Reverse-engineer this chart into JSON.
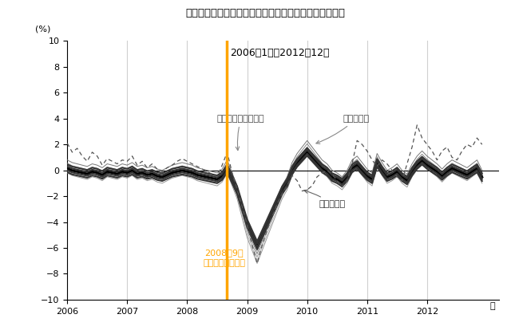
{
  "title": "《参考》現金給与総額（前年同月比）　就業形態別比較",
  "subtitle": "2006年1月～2012年12月",
  "ylabel": "(%)",
  "vline_color": "#FFA500",
  "vline_label1": "2008年9月",
  "vline_label2": "リーマンショック",
  "legend_parttime": "パートタイム労働者",
  "legend_general": "一般労働者",
  "legend_total": "就業形態計",
  "bg_color": "#ffffff",
  "plot_bg_color": "#ffffff",
  "grid_color": "#d0d0d0",
  "parttime": [
    2.1,
    1.4,
    1.7,
    1.1,
    0.7,
    1.4,
    1.1,
    0.4,
    0.9,
    0.7,
    0.5,
    0.8,
    0.7,
    1.1,
    0.4,
    0.7,
    0.2,
    0.5,
    0.1,
    -0.1,
    0.2,
    0.4,
    0.7,
    0.9,
    0.7,
    0.5,
    0.3,
    0.1,
    -0.1,
    -0.3,
    -0.5,
    0.4,
    1.4,
    -0.2,
    -1.5,
    -2.8,
    -4.2,
    -5.8,
    -6.8,
    -5.8,
    -4.6,
    -3.6,
    -2.6,
    -1.8,
    -1.2,
    -0.4,
    -0.8,
    -1.6,
    -1.5,
    -1.2,
    -0.5,
    -0.2,
    0.0,
    -0.3,
    -0.8,
    -1.3,
    -0.8,
    -0.2,
    -0.5,
    -0.8,
    -0.5,
    -0.8,
    -0.3,
    -0.5,
    -0.5,
    -0.3,
    -0.6,
    -0.9,
    -1.2,
    -0.5,
    -0.8,
    -1.5,
    -0.8,
    -0.8,
    -0.8,
    -0.8,
    -0.8,
    -0.8,
    -0.8,
    -0.9,
    -1.0,
    -1.2,
    -1.5,
    -2.0
  ],
  "general_base": [
    0.3,
    0.1,
    0.0,
    -0.1,
    -0.2,
    0.0,
    -0.1,
    -0.3,
    0.0,
    -0.1,
    -0.2,
    0.0,
    -0.1,
    0.1,
    -0.2,
    -0.1,
    -0.3,
    -0.2,
    -0.4,
    -0.5,
    -0.3,
    -0.1,
    0.0,
    0.1,
    0.0,
    -0.1,
    -0.3,
    -0.4,
    -0.5,
    -0.6,
    -0.7,
    -0.4,
    0.3,
    -0.7,
    -1.7,
    -3.2,
    -4.7,
    -5.7,
    -6.7,
    -5.7,
    -4.7,
    -3.7,
    -2.7,
    -1.7,
    -1.0,
    0.1,
    0.8,
    1.3,
    1.8,
    1.3,
    0.8,
    0.3,
    0.0,
    -0.5,
    -0.7,
    -1.0,
    -0.5,
    0.3,
    0.6,
    0.1,
    -0.4,
    -0.7,
    0.8,
    0.1,
    -0.5,
    -0.3,
    0.0,
    -0.5,
    -0.8,
    0.0,
    0.6,
    1.0,
    0.6,
    0.3,
    0.0,
    -0.4,
    0.0,
    0.3,
    0.1,
    -0.1,
    -0.3,
    0.0,
    0.3,
    -0.5
  ],
  "general_offsets": [
    0.0,
    0.25,
    -0.25,
    0.5,
    -0.5
  ],
  "total_offsets": [
    0.0,
    0.15,
    -0.15,
    0.3,
    -0.3
  ],
  "total_scale": 0.85,
  "total_shift": -0.1,
  "dashed_parttime": [
    2.1,
    1.4,
    1.7,
    1.1,
    0.7,
    1.4,
    1.1,
    0.4,
    0.9,
    0.7,
    0.5,
    0.8,
    0.7,
    1.1,
    0.4,
    0.7,
    0.2,
    0.5,
    0.1,
    -0.1,
    0.2,
    0.4,
    0.7,
    0.9,
    0.7,
    0.5,
    0.3,
    0.1,
    -0.1,
    -0.3,
    -0.5,
    0.4,
    1.4,
    -0.2,
    -1.5,
    -2.8,
    -4.2,
    -5.8,
    -7.2,
    -5.8,
    -4.6,
    -3.6,
    -2.6,
    -1.8,
    -1.2,
    -0.4,
    -0.8,
    -1.6,
    -1.5,
    -1.2,
    -0.5,
    -0.2,
    0.0,
    -0.3,
    -0.8,
    -1.3,
    -0.8,
    0.5,
    2.3,
    2.0,
    1.5,
    0.8,
    0.3,
    0.8,
    0.5,
    0.0,
    -0.5,
    -0.8,
    0.5,
    1.8,
    3.5,
    2.5,
    2.0,
    1.5,
    0.8,
    1.5,
    1.8,
    1.0,
    0.8,
    1.5,
    2.0,
    1.8,
    2.5,
    2.0
  ]
}
